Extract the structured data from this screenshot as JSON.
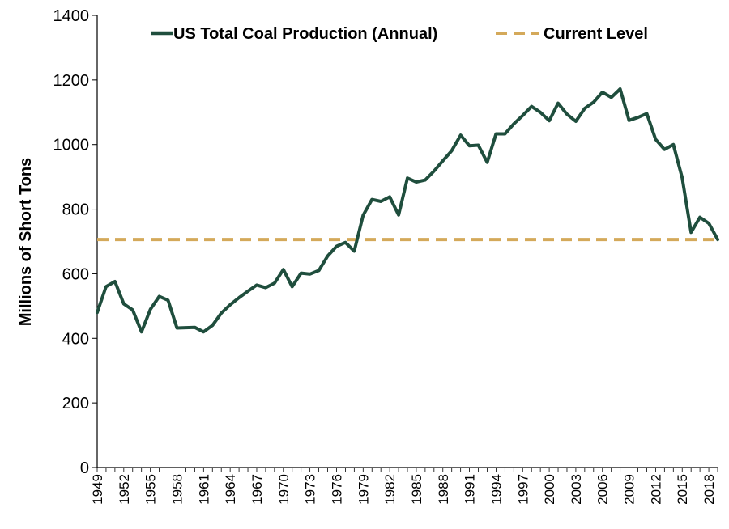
{
  "chart_data": {
    "type": "line",
    "xlabel": "",
    "ylabel": "Millions of Short Tons",
    "xlim": [
      1949,
      2019
    ],
    "ylim": [
      0,
      1400
    ],
    "y_ticks": [
      0,
      200,
      400,
      600,
      800,
      1000,
      1200,
      1400
    ],
    "x_tick_labels": [
      "1949",
      "1952",
      "1955",
      "1958",
      "1961",
      "1964",
      "1967",
      "1970",
      "1973",
      "1976",
      "1979",
      "1982",
      "1985",
      "1988",
      "1991",
      "1994",
      "1997",
      "2000",
      "2003",
      "2006",
      "2009",
      "2012",
      "2015",
      "2018"
    ],
    "grid": false,
    "legend_position": "top",
    "colors": {
      "production": "#1f4e3d",
      "current": "#d4a95a",
      "axis": "#000000"
    },
    "series": [
      {
        "name": "US Total Coal Production (Annual)",
        "style": "solid",
        "x": [
          1949,
          1950,
          1951,
          1952,
          1953,
          1954,
          1955,
          1956,
          1957,
          1958,
          1959,
          1960,
          1961,
          1962,
          1963,
          1964,
          1965,
          1966,
          1967,
          1968,
          1969,
          1970,
          1971,
          1972,
          1973,
          1974,
          1975,
          1976,
          1977,
          1978,
          1979,
          1980,
          1981,
          1982,
          1983,
          1984,
          1985,
          1986,
          1987,
          1988,
          1989,
          1990,
          1991,
          1992,
          1993,
          1994,
          1995,
          1996,
          1997,
          1998,
          1999,
          2000,
          2001,
          2002,
          2003,
          2004,
          2005,
          2006,
          2007,
          2008,
          2009,
          2010,
          2011,
          2012,
          2013,
          2014,
          2015,
          2016,
          2017,
          2018,
          2019
        ],
        "values": [
          480,
          560,
          576,
          507,
          488,
          420,
          490,
          530,
          518,
          432,
          433,
          434,
          420,
          440,
          478,
          504,
          526,
          546,
          565,
          557,
          571,
          613,
          560,
          602,
          599,
          610,
          655,
          685,
          697,
          670,
          781,
          830,
          824,
          838,
          782,
          896,
          884,
          890,
          918,
          950,
          981,
          1029,
          996,
          998,
          945,
          1033,
          1033,
          1064,
          1090,
          1118,
          1100,
          1074,
          1128,
          1094,
          1072,
          1112,
          1131,
          1162,
          1146,
          1172,
          1075,
          1084,
          1096,
          1016,
          985,
          1000,
          897,
          728,
          775,
          756,
          706
        ]
      },
      {
        "name": "Current Level",
        "style": "dashed",
        "x": [
          1949,
          2019
        ],
        "values": [
          706,
          706
        ]
      }
    ]
  }
}
